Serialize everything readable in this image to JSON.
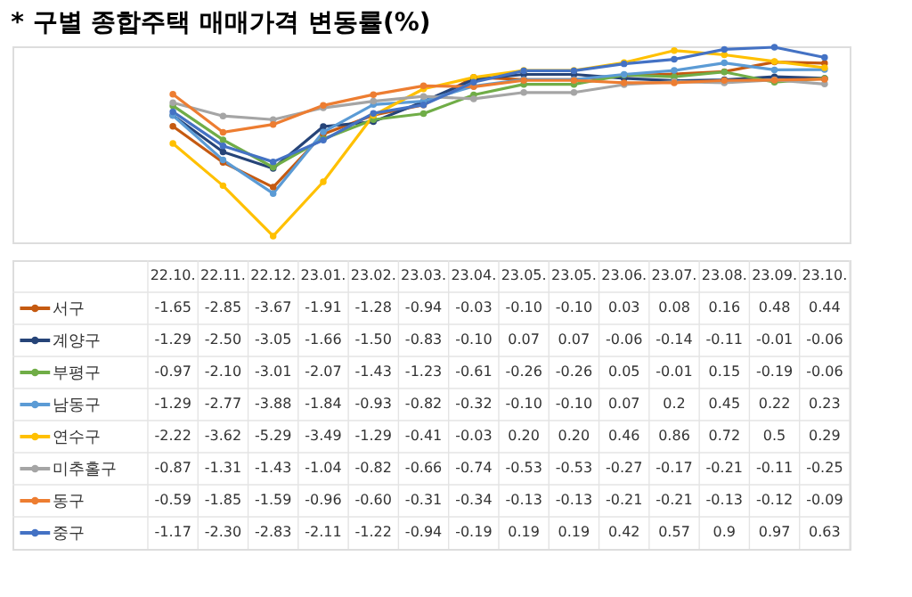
{
  "chart_data": {
    "type": "line",
    "title": "* 구별 종합주택 매매가격 변동률(%)",
    "categories": [
      "22.10.",
      "22.11.",
      "22.12.",
      "23.01.",
      "23.02.",
      "23.03.",
      "23.04.",
      "23.05.",
      "23.05.",
      "23.06.",
      "23.07.",
      "23.08.",
      "23.09.",
      "23.10."
    ],
    "marker": "circle",
    "legend": "bottom",
    "series": [
      {
        "name": "서구",
        "color": "#c55a11",
        "values": [
          -1.65,
          -2.85,
          -3.67,
          -1.91,
          -1.28,
          -0.94,
          -0.03,
          -0.1,
          -0.1,
          0.03,
          0.08,
          0.16,
          0.48,
          0.44
        ],
        "value_labels": [
          "-1.65",
          "-2.85",
          "-3.67",
          "-1.91",
          "-1.28",
          "-0.94",
          "-0.03",
          "-0.10",
          "-0.10",
          "0.03",
          "0.08",
          "0.16",
          "0.48",
          "0.44"
        ]
      },
      {
        "name": "계양구",
        "color": "#264478",
        "values": [
          -1.29,
          -2.5,
          -3.05,
          -1.66,
          -1.5,
          -0.83,
          -0.1,
          0.07,
          0.07,
          -0.06,
          -0.14,
          -0.11,
          -0.01,
          -0.06
        ],
        "value_labels": [
          "-1.29",
          "-2.50",
          "-3.05",
          "-1.66",
          "-1.50",
          "-0.83",
          "-0.10",
          "0.07",
          "0.07",
          "-0.06",
          "-0.14",
          "-0.11",
          "-0.01",
          "-0.06"
        ]
      },
      {
        "name": "부평구",
        "color": "#70ad47",
        "values": [
          -0.97,
          -2.1,
          -3.01,
          -2.07,
          -1.43,
          -1.23,
          -0.61,
          -0.26,
          -0.26,
          0.05,
          -0.01,
          0.15,
          -0.19,
          -0.06
        ],
        "value_labels": [
          "-0.97",
          "-2.10",
          "-3.01",
          "-2.07",
          "-1.43",
          "-1.23",
          "-0.61",
          "-0.26",
          "-0.26",
          "0.05",
          "-0.01",
          "0.15",
          "-0.19",
          "-0.06"
        ]
      },
      {
        "name": "남동구",
        "color": "#5b9bd5",
        "values": [
          -1.29,
          -2.77,
          -3.88,
          -1.84,
          -0.93,
          -0.82,
          -0.32,
          -0.1,
          -0.1,
          0.07,
          0.2,
          0.45,
          0.22,
          0.23
        ],
        "value_labels": [
          "-1.29",
          "-2.77",
          "-3.88",
          "-1.84",
          "-0.93",
          "-0.82",
          "-0.32",
          "-0.10",
          "-0.10",
          "0.07",
          "0.2",
          "0.45",
          "0.22",
          "0.23"
        ]
      },
      {
        "name": "연수구",
        "color": "#ffc000",
        "values": [
          -2.22,
          -3.62,
          -5.29,
          -3.49,
          -1.29,
          -0.41,
          -0.03,
          0.2,
          0.2,
          0.46,
          0.86,
          0.72,
          0.5,
          0.29
        ],
        "value_labels": [
          "-2.22",
          "-3.62",
          "-5.29",
          "-3.49",
          "-1.29",
          "-0.41",
          "-0.03",
          "0.20",
          "0.20",
          "0.46",
          "0.86",
          "0.72",
          "0.5",
          "0.29"
        ]
      },
      {
        "name": "미추홀구",
        "color": "#a5a5a5",
        "values": [
          -0.87,
          -1.31,
          -1.43,
          -1.04,
          -0.82,
          -0.66,
          -0.74,
          -0.53,
          -0.53,
          -0.27,
          -0.17,
          -0.21,
          -0.11,
          -0.25
        ],
        "value_labels": [
          "-0.87",
          "-1.31",
          "-1.43",
          "-1.04",
          "-0.82",
          "-0.66",
          "-0.74",
          "-0.53",
          "-0.53",
          "-0.27",
          "-0.17",
          "-0.21",
          "-0.11",
          "-0.25"
        ]
      },
      {
        "name": "동구",
        "color": "#ed7d31",
        "values": [
          -0.59,
          -1.85,
          -1.59,
          -0.96,
          -0.6,
          -0.31,
          -0.34,
          -0.13,
          -0.13,
          -0.21,
          -0.21,
          -0.13,
          -0.12,
          -0.09
        ],
        "value_labels": [
          "-0.59",
          "-1.85",
          "-1.59",
          "-0.96",
          "-0.60",
          "-0.31",
          "-0.34",
          "-0.13",
          "-0.13",
          "-0.21",
          "-0.21",
          "-0.13",
          "-0.12",
          "-0.09"
        ]
      },
      {
        "name": "중구",
        "color": "#4472c4",
        "values": [
          -1.17,
          -2.3,
          -2.83,
          -2.11,
          -1.22,
          -0.94,
          -0.19,
          0.19,
          0.19,
          0.42,
          0.57,
          0.9,
          0.97,
          0.63
        ],
        "value_labels": [
          "-1.17",
          "-2.30",
          "-2.83",
          "-2.11",
          "-1.22",
          "-0.94",
          "-0.19",
          "0.19",
          "0.19",
          "0.42",
          "0.57",
          "0.9",
          "0.97",
          "0.63"
        ]
      }
    ]
  }
}
